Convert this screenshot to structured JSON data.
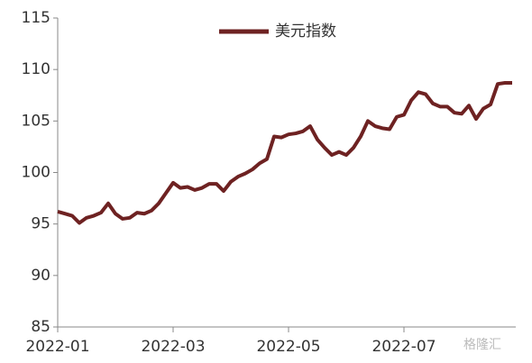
{
  "chart_data": {
    "type": "line",
    "categories": [
      "2022-01",
      null,
      null,
      null,
      null,
      null,
      null,
      null,
      null,
      null,
      null,
      null,
      null,
      null,
      null,
      null,
      "2022-03",
      null,
      null,
      null,
      null,
      null,
      null,
      null,
      null,
      null,
      null,
      null,
      null,
      null,
      null,
      null,
      "2022-05",
      null,
      null,
      null,
      null,
      null,
      null,
      null,
      null,
      null,
      null,
      null,
      null,
      null,
      null,
      null,
      "2022-07",
      null,
      null,
      null,
      null,
      null,
      null,
      null,
      null,
      null,
      null,
      null,
      null,
      null,
      null,
      null
    ],
    "series": [
      {
        "name": "美元指数",
        "color": "#6e2222",
        "values": [
          96.2,
          96.0,
          95.8,
          95.1,
          95.6,
          95.8,
          96.1,
          97.0,
          96.0,
          95.5,
          95.6,
          96.1,
          96.0,
          96.3,
          97.0,
          98.0,
          99.0,
          98.5,
          98.6,
          98.3,
          98.5,
          98.9,
          98.9,
          98.2,
          99.1,
          99.6,
          99.9,
          100.3,
          100.9,
          101.3,
          103.5,
          103.4,
          103.7,
          103.8,
          104.0,
          104.5,
          103.2,
          102.4,
          101.7,
          102.0,
          101.7,
          102.4,
          103.5,
          105.0,
          104.5,
          104.3,
          104.2,
          105.4,
          105.6,
          107.0,
          107.8,
          107.6,
          106.7,
          106.4,
          106.4,
          105.8,
          105.7,
          106.5,
          105.2,
          106.2,
          106.6,
          108.6,
          108.7,
          108.7
        ]
      }
    ],
    "ylim": [
      85,
      115
    ],
    "yticks": [
      85,
      90,
      95,
      100,
      105,
      110,
      115
    ],
    "legend": "top"
  },
  "watermark": "格隆汇"
}
